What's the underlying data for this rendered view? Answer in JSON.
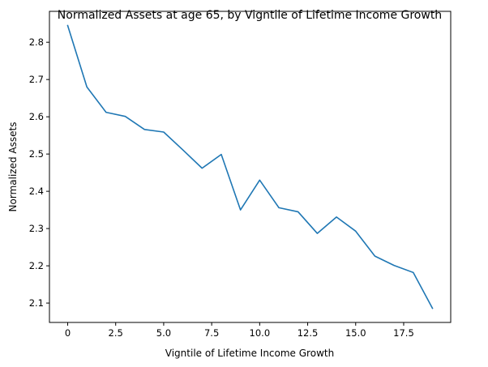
{
  "chart_data": {
    "type": "line",
    "title": "Normalized Assets at age 65, by Vigntile of Lifetime Income Growth",
    "xlabel": "Vigntile of Lifetime Income Growth",
    "ylabel": "Normalized Assets",
    "xlim": [
      -0.95,
      19.95
    ],
    "ylim": [
      2.048,
      2.883
    ],
    "xticks": [
      0,
      2.5,
      5,
      7.5,
      10,
      12.5,
      15,
      17.5
    ],
    "xtick_labels": [
      "0",
      "2.5",
      "5.0",
      "7.5",
      "10.0",
      "12.5",
      "15.0",
      "17.5"
    ],
    "yticks": [
      2.1,
      2.2,
      2.3,
      2.4,
      2.5,
      2.6,
      2.7,
      2.8
    ],
    "ytick_labels": [
      "2.1",
      "2.2",
      "2.3",
      "2.4",
      "2.5",
      "2.6",
      "2.7",
      "2.8"
    ],
    "grid": false,
    "legend": "none",
    "line_color": "#1f77b4",
    "series": [
      {
        "x": [
          0,
          1,
          2,
          3,
          4,
          5,
          6,
          7,
          8,
          9,
          10,
          11,
          12,
          13,
          14,
          15,
          16,
          17,
          18,
          19
        ],
        "values": [
          2.845,
          2.68,
          2.612,
          2.601,
          2.566,
          2.559,
          2.511,
          2.462,
          2.499,
          2.35,
          2.43,
          2.356,
          2.345,
          2.287,
          2.331,
          2.293,
          2.226,
          2.201,
          2.182,
          2.086
        ]
      }
    ]
  }
}
